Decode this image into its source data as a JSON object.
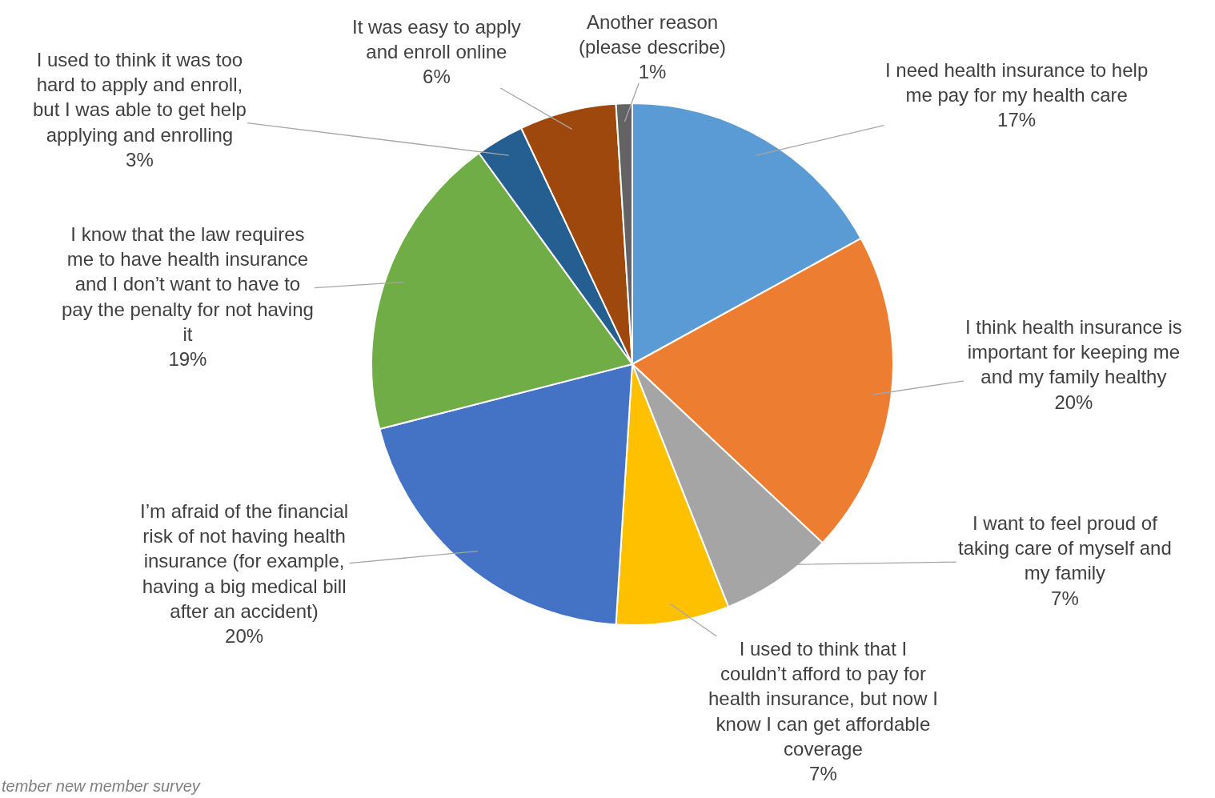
{
  "chart_data": {
    "type": "pie",
    "categories": [
      "I need health insurance to help me pay for my health care",
      "I think health insurance is important for keeping me and my family healthy",
      "I want to feel proud of taking care of myself and my family",
      "I used to think that I couldn’t afford to pay for health insurance, but now I know I can get affordable coverage",
      "I’m afraid of the financial risk of not having health insurance (for example, having a big medical bill after an accident)",
      "I know that the law requires me to have health insurance and I don’t want to have to pay the penalty for not having it",
      "I used to think it was too hard to apply and enroll, but I was able to get help applying and enrolling",
      "It was easy to apply and enroll online",
      "Another reason (please describe)"
    ],
    "values": [
      17,
      20,
      7,
      7,
      20,
      19,
      3,
      6,
      1
    ],
    "colors": [
      "#5b9bd5",
      "#ed7d31",
      "#a5a5a5",
      "#ffc000",
      "#4472c4",
      "#70ad47",
      "#255e91",
      "#9e480e",
      "#636363"
    ],
    "value_labels": [
      "17%",
      "20%",
      "7%",
      "7%",
      "20%",
      "19%",
      "3%",
      "6%",
      "1%"
    ],
    "legend": false,
    "annotations": [
      "tember new member survey"
    ]
  }
}
